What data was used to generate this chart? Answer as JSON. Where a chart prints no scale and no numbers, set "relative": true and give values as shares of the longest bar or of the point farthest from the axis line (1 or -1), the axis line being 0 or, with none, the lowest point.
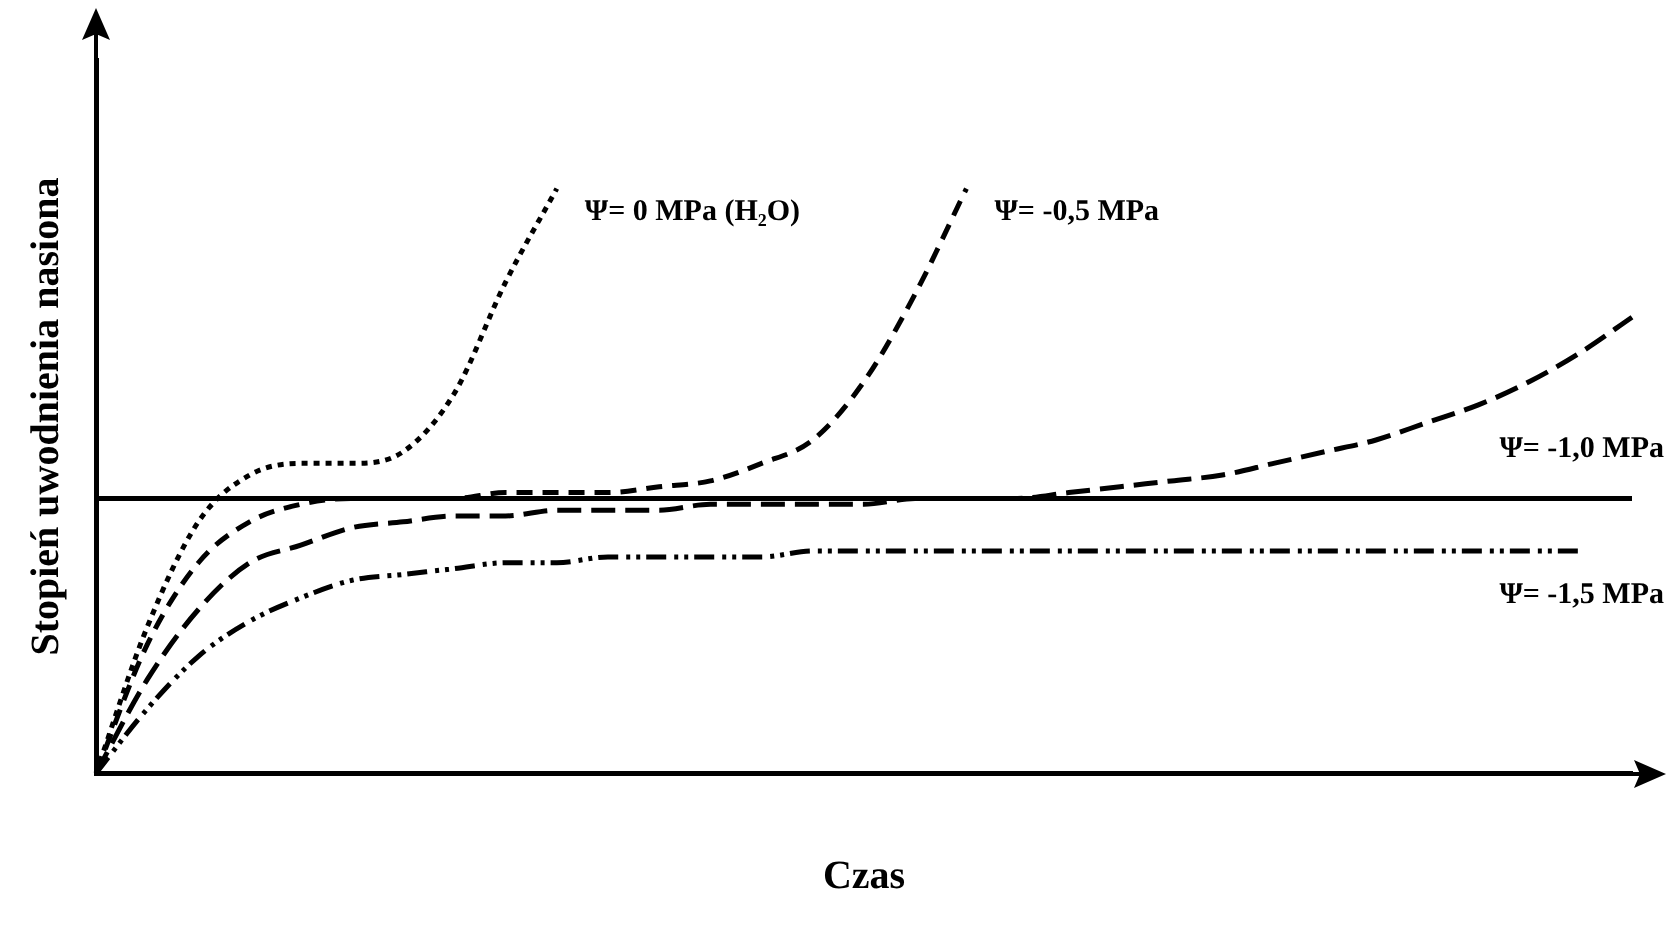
{
  "chart_data": {
    "type": "line",
    "relative": true,
    "xlabel": "Czas",
    "ylabel": "Stopień uwodnienia nasiona",
    "categories": [
      null,
      null,
      null,
      null,
      null,
      null,
      null,
      null,
      null,
      null,
      null,
      null,
      null,
      null,
      null,
      null,
      null,
      null,
      null,
      null,
      null,
      null,
      null,
      null,
      null,
      null,
      null,
      null,
      null,
      null,
      null
    ],
    "series": [
      {
        "name": "Ψ= 0 MPa (H₂O)",
        "color": "#000000",
        "line_style": "dotted",
        "values": [
          0,
          0.25,
          0.43,
          0.51,
          0.53,
          0.53,
          0.55,
          0.65,
          0.84,
          1.0,
          null,
          null,
          null,
          null,
          null,
          null,
          null,
          null,
          null,
          null,
          null,
          null,
          null,
          null,
          null,
          null,
          null,
          null,
          null,
          null,
          null
        ]
      },
      {
        "name": "Ψ= -0,5 MPa",
        "color": "#000000",
        "line_style": "dashed",
        "values": [
          0,
          0.22,
          0.36,
          0.43,
          0.46,
          0.47,
          0.47,
          0.47,
          0.48,
          0.48,
          0.48,
          0.49,
          0.5,
          0.53,
          0.57,
          0.67,
          0.82,
          1.0,
          null,
          null,
          null,
          null,
          null,
          null,
          null,
          null,
          null,
          null,
          null,
          null,
          null
        ]
      },
      {
        "name": "Ψ= -1,0 MPa",
        "color": "#000000",
        "line_style": "dashed",
        "values": [
          0,
          0.16,
          0.28,
          0.36,
          0.39,
          0.42,
          0.43,
          0.44,
          0.44,
          0.45,
          0.45,
          0.45,
          0.46,
          0.46,
          0.46,
          0.46,
          0.47,
          0.47,
          0.47,
          0.48,
          0.49,
          0.5,
          0.51,
          0.53,
          0.55,
          0.57,
          0.6,
          0.63,
          0.67,
          0.72,
          0.78
        ]
      },
      {
        "name": "Ψ= -1,5 MPa",
        "color": "#000000",
        "line_style": "dashed",
        "values": [
          0,
          0.11,
          0.2,
          0.26,
          0.3,
          0.33,
          0.34,
          0.35,
          0.36,
          0.36,
          0.37,
          0.37,
          0.37,
          0.37,
          0.38,
          0.38,
          0.38,
          0.38,
          0.38,
          0.38,
          0.38,
          0.38,
          0.38,
          0.38,
          0.38,
          0.38,
          0.38,
          0.38,
          0.38,
          0.38,
          null
        ]
      }
    ],
    "ref_lines": [
      {
        "axis": "y",
        "value": 0.47,
        "color": "#000000",
        "line_style": "solid"
      }
    ],
    "grid": false,
    "legend": false,
    "marker": "none"
  }
}
